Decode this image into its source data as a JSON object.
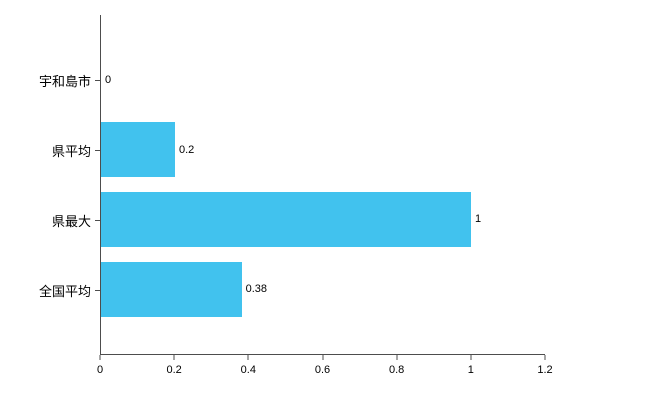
{
  "chart_data": {
    "type": "bar",
    "orientation": "horizontal",
    "categories": [
      "宇和島市",
      "県平均",
      "県最大",
      "全国平均"
    ],
    "values": [
      0,
      0.2,
      1,
      0.38
    ],
    "value_labels": [
      "0",
      "0.2",
      "1",
      "0.38"
    ],
    "x_ticks": [
      0,
      0.2,
      0.4,
      0.6,
      0.8,
      1,
      1.2
    ],
    "x_tick_labels": [
      "0",
      "0.2",
      "0.4",
      "0.6",
      "0.8",
      "1",
      "1.2"
    ],
    "xlim": [
      0,
      1.2
    ],
    "grid": false,
    "legend": false,
    "bar_color": "#41c2ee",
    "axis_color": "#4d4d4d"
  }
}
